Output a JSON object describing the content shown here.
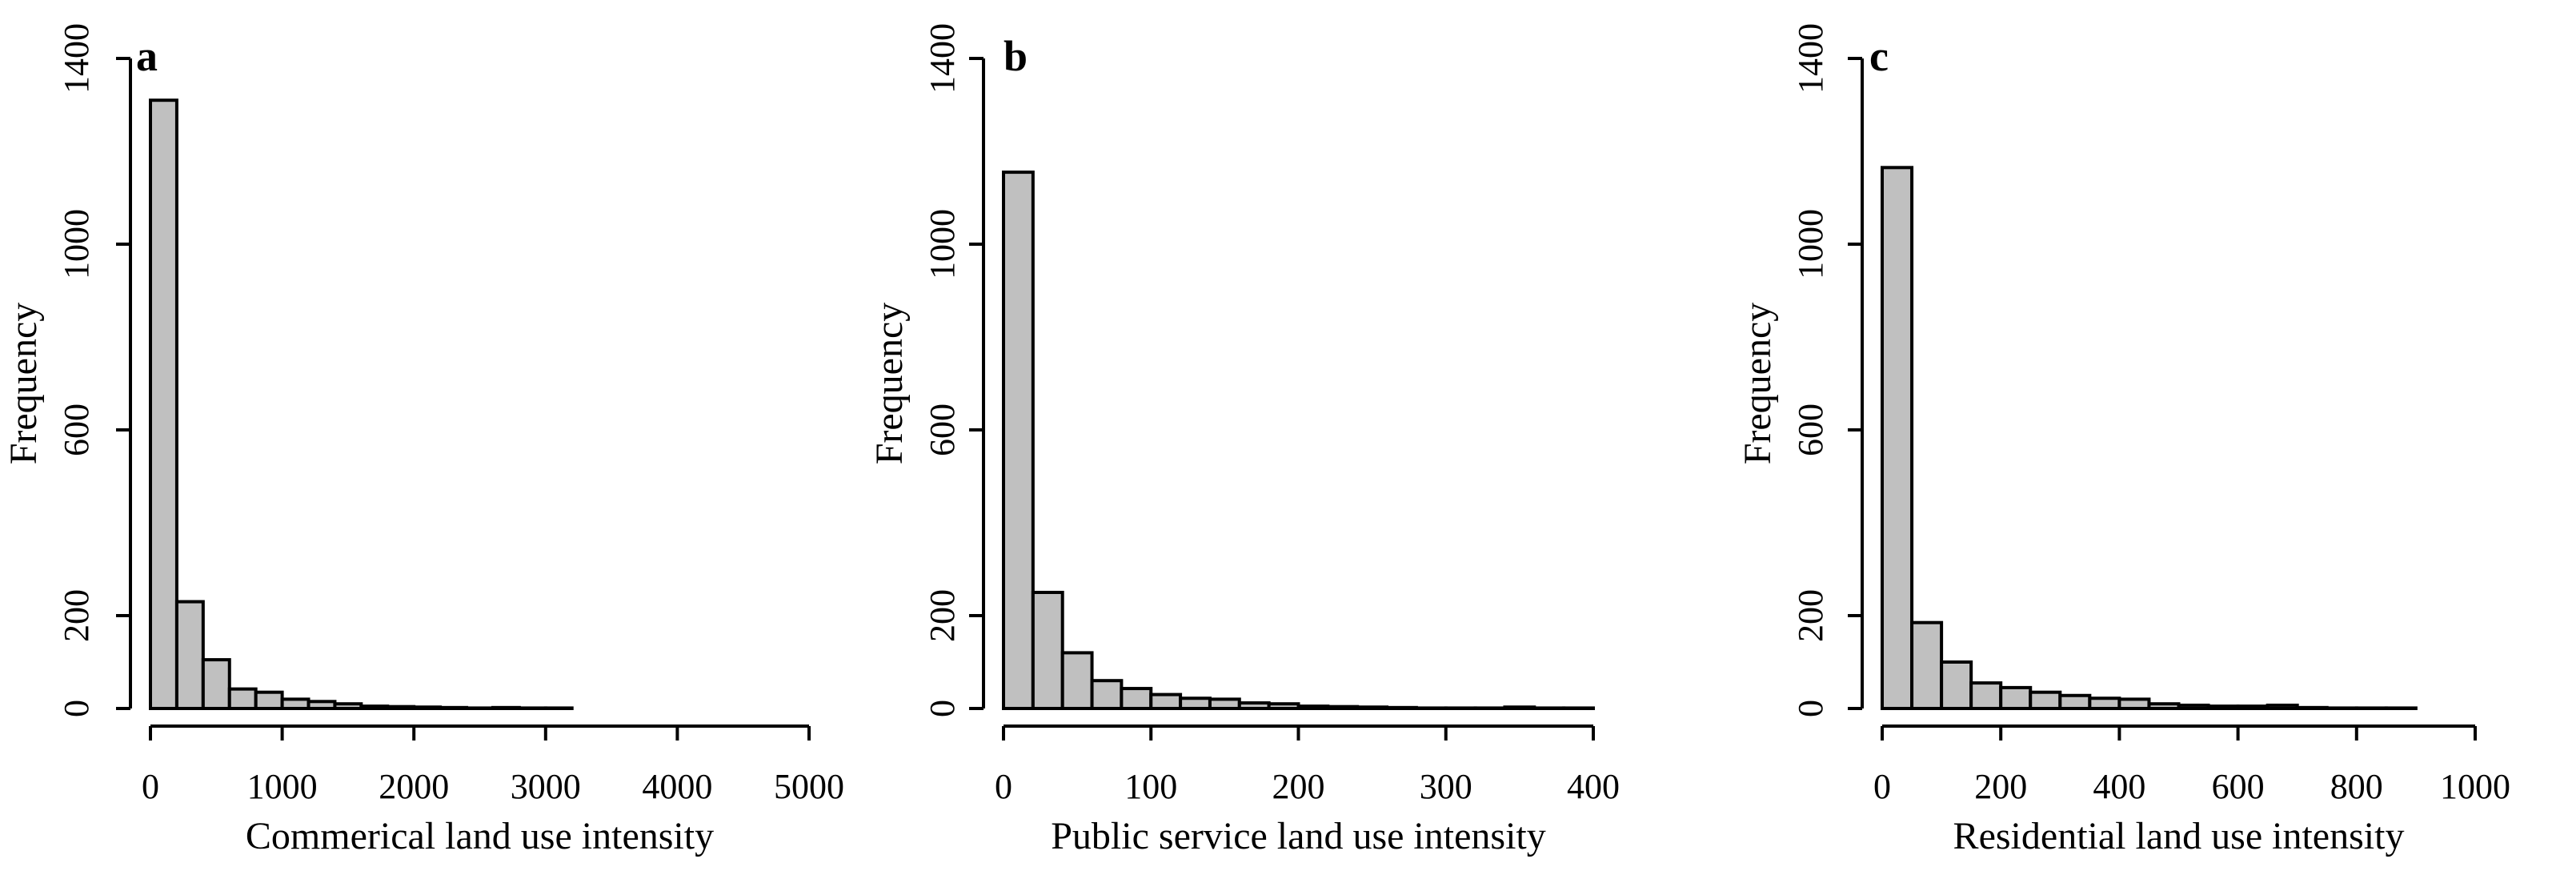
{
  "chart_data": [
    {
      "type": "bar",
      "panel_label": "a",
      "xlabel": "Commerical land use intensity",
      "ylabel": "Frequency",
      "bar_color": "#c0c0c0",
      "bin_width": 200,
      "x_start": 0,
      "values": [
        1310,
        230,
        105,
        42,
        35,
        20,
        15,
        10,
        5,
        4,
        3,
        2,
        1,
        2,
        1,
        1,
        0,
        0,
        0,
        0
      ],
      "xlim": [
        0,
        5000
      ],
      "ylim": [
        0,
        1400
      ],
      "x_ticks": [
        0,
        1000,
        2000,
        3000,
        4000,
        5000
      ],
      "y_ticks": [
        0,
        200,
        600,
        1000,
        1400
      ],
      "grid": false
    },
    {
      "type": "bar",
      "panel_label": "b",
      "xlabel": "Public service land use intensity",
      "ylabel": "Frequency",
      "bar_color": "#c0c0c0",
      "bin_width": 20,
      "x_start": 0,
      "values": [
        1155,
        250,
        120,
        60,
        43,
        30,
        22,
        20,
        12,
        10,
        5,
        4,
        3,
        2,
        1,
        1,
        1,
        3,
        1,
        1
      ],
      "xlim": [
        0,
        400
      ],
      "ylim": [
        0,
        1400
      ],
      "x_ticks": [
        0,
        100,
        200,
        300,
        400
      ],
      "y_ticks": [
        0,
        200,
        600,
        1000,
        1400
      ],
      "grid": false
    },
    {
      "type": "bar",
      "panel_label": "c",
      "xlabel": "Residential land use intensity",
      "ylabel": "Frequency",
      "bar_color": "#c0c0c0",
      "bin_width": 50,
      "x_start": 0,
      "values": [
        1165,
        185,
        100,
        55,
        45,
        35,
        28,
        22,
        20,
        10,
        7,
        5,
        5,
        7,
        2,
        1,
        1,
        1,
        0,
        0,
        0,
        0,
        0
      ],
      "xlim": [
        0,
        1000
      ],
      "ylim": [
        0,
        1400
      ],
      "x_ticks": [
        0,
        200,
        400,
        600,
        800,
        1000
      ],
      "y_ticks": [
        0,
        200,
        600,
        1000,
        1400
      ],
      "grid": false
    }
  ]
}
